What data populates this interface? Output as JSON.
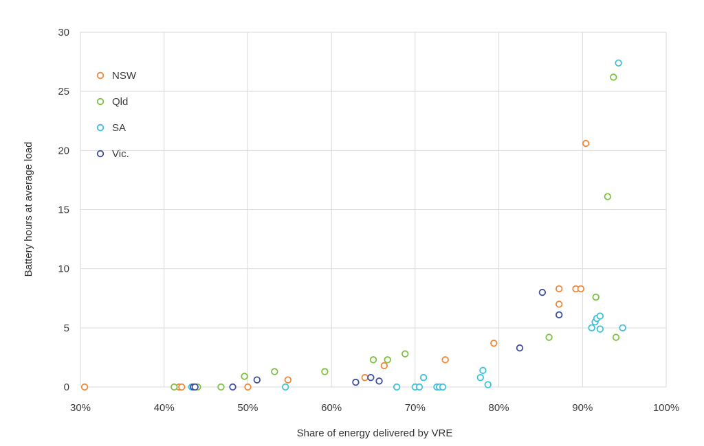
{
  "chart_data": {
    "type": "scatter",
    "title": "",
    "xlabel": "Share of energy delivered by VRE",
    "ylabel": "Battery hours at average load",
    "xlim": [
      30,
      100
    ],
    "ylim": [
      0,
      30
    ],
    "grid": true,
    "legend_position": "top-left",
    "x_ticks": [
      30,
      40,
      50,
      60,
      70,
      80,
      90,
      100
    ],
    "x_tick_labels": [
      "30%",
      "40%",
      "50%",
      "60%",
      "70%",
      "80%",
      "90%",
      "100%"
    ],
    "y_ticks": [
      0,
      5,
      10,
      15,
      20,
      25,
      30
    ],
    "y_tick_labels": [
      "0",
      "5",
      "10",
      "15",
      "20",
      "25",
      "30"
    ],
    "series": [
      {
        "name": "NSW",
        "color": "#f0883a",
        "points": [
          [
            30.5,
            0
          ],
          [
            41.8,
            0
          ],
          [
            42.1,
            0
          ],
          [
            50.0,
            0
          ],
          [
            54.8,
            0.6
          ],
          [
            64.0,
            0.8
          ],
          [
            66.3,
            1.8
          ],
          [
            73.6,
            2.3
          ],
          [
            79.4,
            3.7
          ],
          [
            87.2,
            8.3
          ],
          [
            87.2,
            7.0
          ],
          [
            89.2,
            8.3
          ],
          [
            89.8,
            8.3
          ],
          [
            90.4,
            20.6
          ]
        ]
      },
      {
        "name": "Qld",
        "color": "#7cc242",
        "points": [
          [
            41.2,
            0
          ],
          [
            44.0,
            0
          ],
          [
            46.8,
            0
          ],
          [
            49.6,
            0.9
          ],
          [
            53.2,
            1.3
          ],
          [
            59.2,
            1.3
          ],
          [
            65.0,
            2.3
          ],
          [
            66.7,
            2.3
          ],
          [
            68.8,
            2.8
          ],
          [
            86.0,
            4.2
          ],
          [
            91.6,
            7.6
          ],
          [
            93.0,
            16.1
          ],
          [
            93.7,
            26.2
          ],
          [
            94.0,
            4.2
          ]
        ]
      },
      {
        "name": "SA",
        "color": "#3cc0dc",
        "points": [
          [
            43.3,
            0
          ],
          [
            54.5,
            0
          ],
          [
            67.8,
            0
          ],
          [
            70.0,
            0
          ],
          [
            70.5,
            0
          ],
          [
            71.0,
            0.8
          ],
          [
            72.6,
            0
          ],
          [
            72.9,
            0
          ],
          [
            73.3,
            0
          ],
          [
            77.8,
            0.8
          ],
          [
            78.1,
            1.4
          ],
          [
            78.7,
            0.2
          ],
          [
            91.1,
            5.0
          ],
          [
            91.5,
            5.5
          ],
          [
            91.7,
            5.8
          ],
          [
            92.1,
            6.0
          ],
          [
            92.1,
            4.9
          ],
          [
            94.3,
            27.4
          ],
          [
            94.8,
            5.0
          ]
        ]
      },
      {
        "name": "Vic.",
        "color": "#3e4ea1",
        "points": [
          [
            43.5,
            0
          ],
          [
            43.7,
            0
          ],
          [
            48.2,
            0
          ],
          [
            51.1,
            0.6
          ],
          [
            62.9,
            0.4
          ],
          [
            64.7,
            0.8
          ],
          [
            65.7,
            0.5
          ],
          [
            82.5,
            3.3
          ],
          [
            85.2,
            8.0
          ],
          [
            87.2,
            6.1
          ]
        ]
      }
    ]
  }
}
